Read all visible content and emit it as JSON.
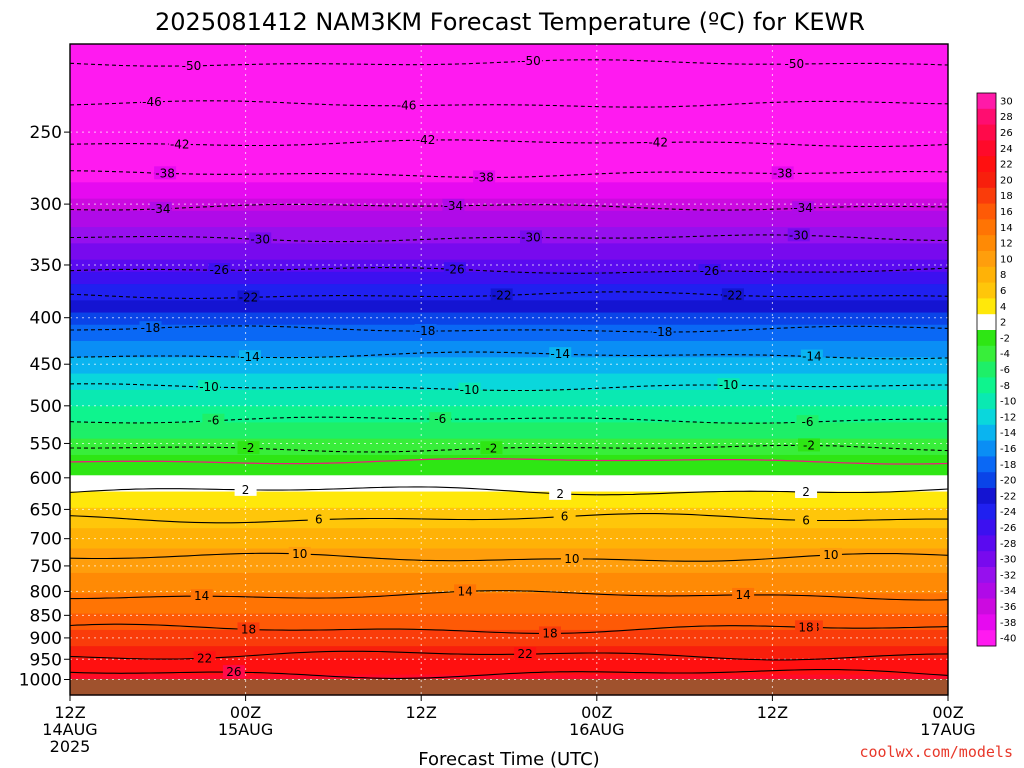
{
  "title": "2025081412 NAM3KM Forecast Temperature (ºC) for KEWR",
  "xlabel": "Forecast Time (UTC)",
  "credit": "coolwx.com/models",
  "colors": {
    "terrain": "#a0522d",
    "freezing_line": "#ffffff",
    "zero_contour": "#e8207a",
    "frame": "#000000"
  },
  "chart_data": {
    "type": "heatmap",
    "title": "2025081412 NAM3KM Forecast Temperature (ºC) for KEWR",
    "xlabel": "Forecast Time (UTC)",
    "ylabel": "",
    "y_scale": "log-pressure, inverted",
    "x_range_hours": [
      0,
      60
    ],
    "y_range_hPa": [
      200,
      1040
    ],
    "x_ticks": [
      {
        "hour": 0,
        "lines": [
          "12Z",
          "14AUG",
          "2025"
        ]
      },
      {
        "hour": 12,
        "lines": [
          "00Z",
          "15AUG"
        ]
      },
      {
        "hour": 24,
        "lines": [
          "12Z"
        ]
      },
      {
        "hour": 36,
        "lines": [
          "00Z",
          "16AUG"
        ]
      },
      {
        "hour": 48,
        "lines": [
          "12Z"
        ]
      },
      {
        "hour": 60,
        "lines": [
          "00Z",
          "17AUG"
        ]
      }
    ],
    "y_ticks": [
      250,
      300,
      350,
      400,
      450,
      500,
      550,
      600,
      650,
      700,
      750,
      800,
      850,
      900,
      950,
      1000
    ],
    "colorbar": {
      "labels": [
        30,
        28,
        26,
        24,
        22,
        20,
        18,
        16,
        14,
        12,
        10,
        8,
        6,
        4,
        2,
        -2,
        -4,
        -6,
        -8,
        -10,
        -12,
        -14,
        -16,
        -18,
        -20,
        -22,
        -24,
        -26,
        -28,
        -30,
        -32,
        -34,
        -36,
        -38,
        -40
      ],
      "colors": [
        "#ff1aa8",
        "#ff0d70",
        "#ff0a4a",
        "#ff0a2a",
        "#ff1010",
        "#f81f0c",
        "#fa3c0a",
        "#fe5a06",
        "#ff7404",
        "#ff8a05",
        "#ff9e0c",
        "#ffb207",
        "#ffc60a",
        "#ffe80a",
        "#ffffff",
        "#2ee614",
        "#38ee3a",
        "#1eef68",
        "#0ef48e",
        "#0ae9b2",
        "#0ad7dc",
        "#0ab4f0",
        "#0a8ef5",
        "#0a68f5",
        "#0a44e8",
        "#1414d2",
        "#2020f0",
        "#3c10f0",
        "#5a0af0",
        "#780aee",
        "#9610ee",
        "#b00ae8",
        "#cc0ae0",
        "#e60af0",
        "#ff1af0"
      ]
    },
    "profile": [
      {
        "p": 200,
        "t": -54
      },
      {
        "p": 250,
        "t": -44
      },
      {
        "p": 300,
        "t": -35
      },
      {
        "p": 350,
        "t": -27
      },
      {
        "p": 400,
        "t": -19
      },
      {
        "p": 450,
        "t": -13
      },
      {
        "p": 500,
        "t": -8
      },
      {
        "p": 550,
        "t": -3.5
      },
      {
        "p": 575,
        "t": -1
      },
      {
        "p": 600,
        "t": 2.5
      },
      {
        "p": 650,
        "t": 6
      },
      {
        "p": 700,
        "t": 9
      },
      {
        "p": 750,
        "t": 11.5
      },
      {
        "p": 800,
        "t": 14
      },
      {
        "p": 850,
        "t": 16
      },
      {
        "p": 900,
        "t": 19
      },
      {
        "p": 950,
        "t": 22
      },
      {
        "p": 1000,
        "t": 24.5
      },
      {
        "p": 1040,
        "t": 26
      }
    ],
    "contours": [
      {
        "value": -50,
        "dashed": true,
        "p": 210,
        "labels": [
          {
            "hour": 8.3,
            "text": "-50"
          },
          {
            "hour": 31.5,
            "text": "-50"
          },
          {
            "hour": 49.5,
            "text": "-50"
          }
        ]
      },
      {
        "value": -46,
        "dashed": true,
        "p": 233,
        "labels": [
          {
            "hour": 5.6,
            "text": "-46"
          },
          {
            "hour": 23,
            "text": "-46"
          }
        ]
      },
      {
        "value": -42,
        "dashed": true,
        "p": 257,
        "labels": [
          {
            "hour": 7.5,
            "text": "-42"
          },
          {
            "hour": 24.3,
            "text": "-42"
          },
          {
            "hour": 40.2,
            "text": "-42"
          }
        ]
      },
      {
        "value": -38,
        "dashed": true,
        "p": 278,
        "labels": [
          {
            "hour": 6.5,
            "text": "-38"
          },
          {
            "hour": 28.3,
            "text": "-38"
          },
          {
            "hour": 48.7,
            "text": "-38"
          }
        ]
      },
      {
        "value": -34,
        "dashed": true,
        "p": 302,
        "labels": [
          {
            "hour": 6.2,
            "text": "-34"
          },
          {
            "hour": 26.2,
            "text": "-34"
          },
          {
            "hour": 50.1,
            "text": "-34"
          }
        ]
      },
      {
        "value": -30,
        "dashed": true,
        "p": 327,
        "labels": [
          {
            "hour": 13,
            "text": "-30"
          },
          {
            "hour": 31.5,
            "text": "-30"
          },
          {
            "hour": 49.8,
            "text": "-30"
          }
        ]
      },
      {
        "value": -26,
        "dashed": true,
        "p": 355,
        "labels": [
          {
            "hour": 10.2,
            "text": "-26"
          },
          {
            "hour": 26.3,
            "text": "-26"
          },
          {
            "hour": 43.7,
            "text": "-26"
          }
        ]
      },
      {
        "value": -22,
        "dashed": true,
        "p": 378,
        "labels": [
          {
            "hour": 12.2,
            "text": "-22"
          },
          {
            "hour": 29.5,
            "text": "-22"
          },
          {
            "hour": 45.3,
            "text": "-22"
          }
        ]
      },
      {
        "value": -18,
        "dashed": true,
        "p": 412,
        "labels": [
          {
            "hour": 5.5,
            "text": "-18"
          },
          {
            "hour": 24.3,
            "text": "-18"
          },
          {
            "hour": 40.5,
            "text": "-18"
          }
        ]
      },
      {
        "value": -14,
        "dashed": true,
        "p": 440,
        "labels": [
          {
            "hour": 12.3,
            "text": "-14"
          },
          {
            "hour": 33.5,
            "text": "-14"
          },
          {
            "hour": 50.7,
            "text": "-14"
          }
        ]
      },
      {
        "value": -10,
        "dashed": true,
        "p": 477,
        "labels": [
          {
            "hour": 9.5,
            "text": "-10"
          },
          {
            "hour": 27.3,
            "text": "-10"
          },
          {
            "hour": 45,
            "text": "-10"
          }
        ]
      },
      {
        "value": -6,
        "dashed": true,
        "p": 518,
        "labels": [
          {
            "hour": 9.8,
            "text": "-6"
          },
          {
            "hour": 25.3,
            "text": "-6"
          },
          {
            "hour": 50.4,
            "text": "-6"
          }
        ]
      },
      {
        "value": -2,
        "dashed": true,
        "p": 557,
        "labels": [
          {
            "hour": 12.2,
            "text": "-2"
          },
          {
            "hour": 28.8,
            "text": "-2"
          },
          {
            "hour": 50.5,
            "text": "-2"
          }
        ]
      },
      {
        "value": 2,
        "dashed": false,
        "p": 620,
        "labels": [
          {
            "hour": 12,
            "text": "2"
          },
          {
            "hour": 33.5,
            "text": "2"
          },
          {
            "hour": 50.3,
            "text": "2"
          }
        ]
      },
      {
        "value": 6,
        "dashed": false,
        "p": 665,
        "labels": [
          {
            "hour": 17,
            "text": "6"
          },
          {
            "hour": 33.8,
            "text": "6"
          },
          {
            "hour": 50.3,
            "text": "6"
          }
        ]
      },
      {
        "value": 10,
        "dashed": false,
        "p": 735,
        "labels": [
          {
            "hour": 15.7,
            "text": "10"
          },
          {
            "hour": 34.3,
            "text": "10"
          },
          {
            "hour": 52,
            "text": "10"
          }
        ]
      },
      {
        "value": 14,
        "dashed": false,
        "p": 808,
        "labels": [
          {
            "hour": 9,
            "text": "14"
          },
          {
            "hour": 27,
            "text": "14"
          },
          {
            "hour": 46,
            "text": "14"
          }
        ]
      },
      {
        "value": 18,
        "dashed": false,
        "p": 880,
        "labels": [
          {
            "hour": 12.2,
            "text": "18"
          },
          {
            "hour": 32.8,
            "text": "18"
          },
          {
            "hour": 50.7,
            "text": "18"
          },
          {
            "hour": 50.3,
            "text": "18"
          }
        ]
      },
      {
        "value": 22,
        "dashed": false,
        "p": 940,
        "labels": [
          {
            "hour": 9.2,
            "text": "22"
          },
          {
            "hour": 31.1,
            "text": "22"
          }
        ]
      },
      {
        "value": 26,
        "dashed": false,
        "p": 985,
        "labels": [
          {
            "hour": 11.2,
            "text": "26"
          }
        ]
      }
    ]
  }
}
